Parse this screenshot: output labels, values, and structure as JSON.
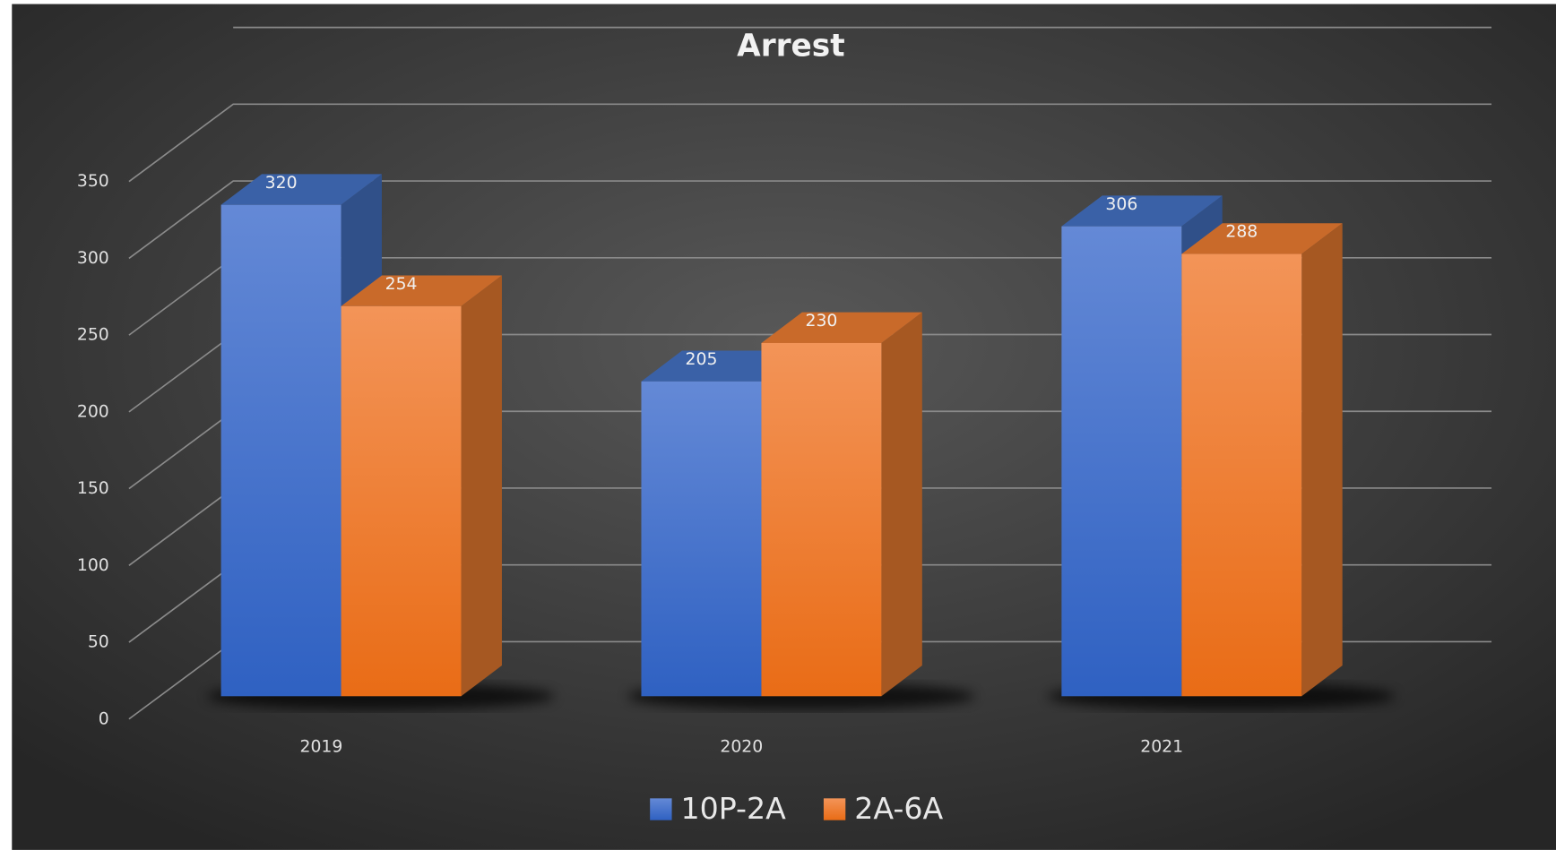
{
  "chart_data": {
    "type": "bar3d",
    "title": "Arrest",
    "categories": [
      "2019",
      "2020",
      "2021"
    ],
    "series": [
      {
        "name": "10P-2A",
        "color": "#4472c4",
        "values": [
          320,
          205,
          306
        ]
      },
      {
        "name": "2A-6A",
        "color": "#ed7d31",
        "values": [
          254,
          230,
          288
        ]
      }
    ],
    "ylim": [
      0,
      350
    ],
    "yticks": [
      0,
      50,
      100,
      150,
      200,
      250,
      300,
      350
    ],
    "grid": true,
    "legend": "bottom"
  }
}
